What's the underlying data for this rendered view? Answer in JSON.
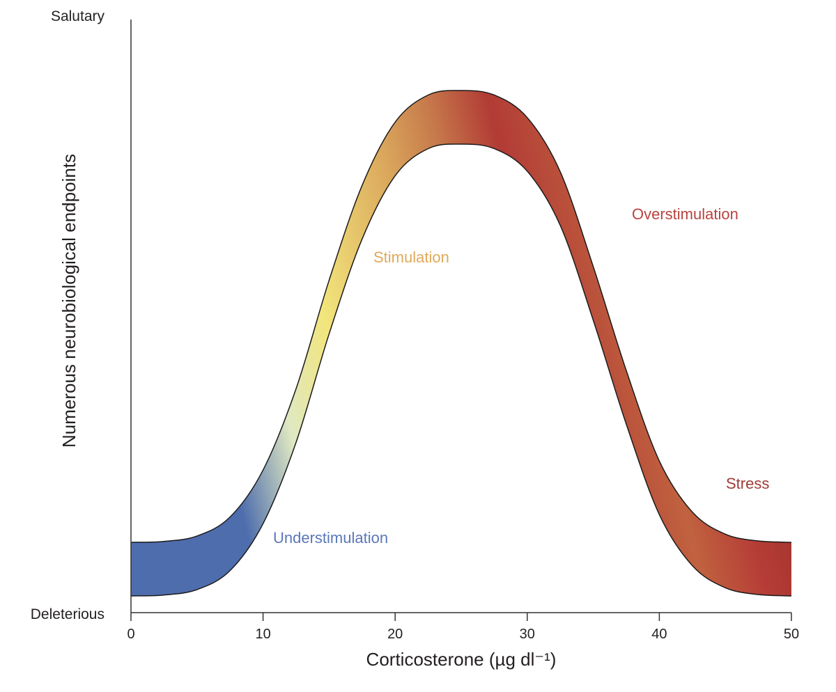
{
  "chart_data": {
    "type": "area",
    "title": "",
    "xlabel": "Corticosterone (µg dl⁻¹)",
    "ylabel": "Numerous neurobiological endpoints",
    "xlim": [
      0,
      50
    ],
    "x_ticks": [
      "0",
      "10",
      "20",
      "30",
      "40",
      "50"
    ],
    "y_tick_labels": {
      "top": "Salutary",
      "bottom": "Deleterious"
    },
    "grid": false,
    "legend": "none",
    "series": [
      {
        "x": [
          0,
          2.5,
          5,
          7.5,
          10,
          12.5,
          15,
          17.5,
          20,
          22.5,
          25,
          27.5,
          30,
          32.5,
          35,
          37.5,
          40,
          42.5,
          45,
          47.5,
          50
        ],
        "y": [
          0,
          0.002,
          0.014,
          0.056,
          0.16,
          0.34,
          0.58,
          0.79,
          0.93,
          0.99,
          1.0,
          0.99,
          0.94,
          0.82,
          0.61,
          0.38,
          0.18,
          0.067,
          0.018,
          0.003,
          0
        ]
      }
    ],
    "annotations": [
      {
        "text": "Understimulation",
        "color": "#5a78b8"
      },
      {
        "text": "Stimulation",
        "color": "#e0a95a"
      },
      {
        "text": "Overstimulation",
        "color": "#b8433f"
      },
      {
        "text": "Stress",
        "color": "#9e3b37"
      }
    ],
    "gradient_colors": [
      "#4e6dad",
      "#4e6dad",
      "#dfe8c2",
      "#f2e57c",
      "#dcab5e",
      "#c77a4b",
      "#b23b36",
      "#c0623f",
      "#b63d37",
      "#9a2f2a"
    ]
  }
}
